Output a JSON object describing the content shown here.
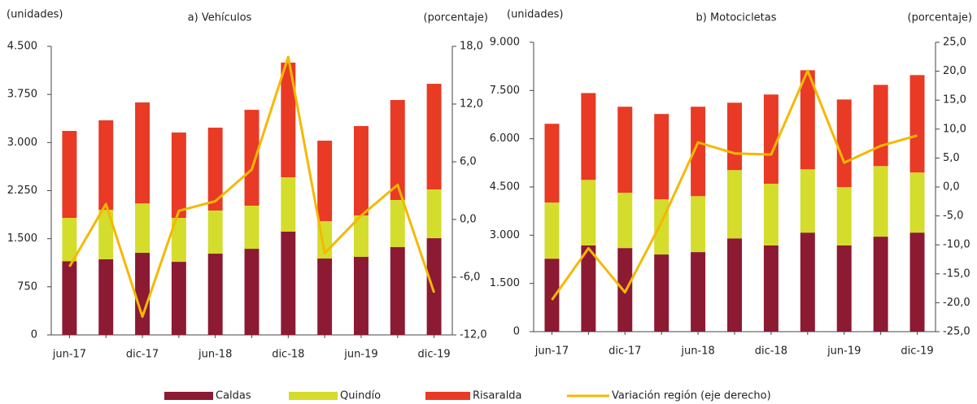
{
  "chart_data": [
    {
      "type": "bar",
      "title": "a) Vehículos",
      "y_label": "(unidades)",
      "y2_label": "(porcentaje)",
      "stacked": true,
      "categories": [
        "jun-17",
        null,
        "dic-17",
        null,
        "jun-18",
        null,
        "dic-18",
        null,
        "jun-19",
        null,
        "dic-19"
      ],
      "series": [
        {
          "name": "Caldas",
          "color": "#8b1a32",
          "values": [
            1150,
            1180,
            1280,
            1140,
            1267,
            1343,
            1610,
            1191,
            1217,
            1369,
            1508
          ]
        },
        {
          "name": "Quindío",
          "color": "#d4dc2c",
          "values": [
            675,
            770,
            770,
            685,
            673,
            672,
            849,
            583,
            646,
            735,
            761
          ]
        },
        {
          "name": "Risaralda",
          "color": "#e83a24",
          "values": [
            1356,
            1396,
            1575,
            1331,
            1292,
            1495,
            1787,
            1255,
            1394,
            1559,
            1647
          ]
        },
        {
          "name": "Variación región (eje derecho)",
          "color": "#f5b800",
          "type": "line",
          "axis": "y2",
          "values": [
            -4.9,
            1.6,
            -10.1,
            0.9,
            1.9,
            5.2,
            16.9,
            -3.5,
            0.4,
            3.6,
            -7.6
          ]
        }
      ],
      "ylim": [
        0,
        4500
      ],
      "yticks": [
        0,
        {
          "value": 750,
          "label": "750"
        },
        {
          "value": 1500,
          "label": "1.500"
        },
        {
          "value": 2250,
          "label": "2.250"
        },
        {
          "value": 3000,
          "label": "3.000"
        },
        {
          "value": 3750,
          "label": "3.750"
        },
        {
          "value": 4500,
          "label": "4.500"
        }
      ],
      "y2lim": [
        -12,
        18
      ],
      "y2ticks": [
        {
          "value": -12,
          "label": "-12,0"
        },
        {
          "value": -6,
          "label": "-6,0"
        },
        {
          "value": 0,
          "label": "0,0"
        },
        {
          "value": 6,
          "label": "6,0"
        },
        {
          "value": 12,
          "label": "12,0"
        },
        {
          "value": 18,
          "label": "18,0"
        }
      ]
    },
    {
      "type": "bar",
      "title": "b) Motocicletas",
      "y_label": "(unidades)",
      "y2_label": "(porcentaje)",
      "stacked": true,
      "categories": [
        "jun-17",
        null,
        "dic-17",
        null,
        "jun-18",
        null,
        "dic-18",
        null,
        "jun-19",
        null,
        "dic-19"
      ],
      "series": [
        {
          "name": "Caldas",
          "color": "#8b1a32",
          "values": [
            2270,
            2680,
            2600,
            2400,
            2475,
            2900,
            2680,
            3080,
            2680,
            2955,
            3080
          ]
        },
        {
          "name": "Quindío",
          "color": "#d4dc2c",
          "values": [
            1745,
            2040,
            1720,
            1715,
            1740,
            2125,
            1920,
            1970,
            1815,
            2195,
            1870
          ]
        },
        {
          "name": "Risaralda",
          "color": "#e83a24",
          "values": [
            2450,
            2700,
            2675,
            2655,
            2780,
            2095,
            2775,
            3080,
            2725,
            2525,
            3030
          ]
        },
        {
          "name": "Variación región (eje derecho)",
          "color": "#f5b800",
          "type": "line",
          "axis": "y2",
          "values": [
            -19.5,
            -10.6,
            -18.2,
            -6.1,
            7.7,
            5.8,
            5.6,
            20.1,
            4.2,
            7.1,
            8.9
          ]
        }
      ],
      "ylim": [
        0,
        9000
      ],
      "yticks": [
        0,
        {
          "value": 1500,
          "label": "1.500"
        },
        {
          "value": 3000,
          "label": "3.000"
        },
        {
          "value": 4500,
          "label": "4.500"
        },
        {
          "value": 6000,
          "label": "6.000"
        },
        {
          "value": 7500,
          "label": "7.500"
        },
        {
          "value": 9000,
          "label": "9.000"
        }
      ],
      "y2lim": [
        -25,
        25
      ],
      "y2ticks": [
        {
          "value": -25,
          "label": "-25,0"
        },
        {
          "value": -20,
          "label": "-20,0"
        },
        {
          "value": -15,
          "label": "-15,0"
        },
        {
          "value": -10,
          "label": "-10,0"
        },
        {
          "value": -5,
          "label": "-5,0"
        },
        {
          "value": 0,
          "label": "0,0"
        },
        {
          "value": 5,
          "label": "5,0"
        },
        {
          "value": 10,
          "label": "10,0"
        },
        {
          "value": 15,
          "label": "15,0"
        },
        {
          "value": 20,
          "label": "20,0"
        },
        {
          "value": 25,
          "label": "25,0"
        }
      ]
    }
  ]
}
